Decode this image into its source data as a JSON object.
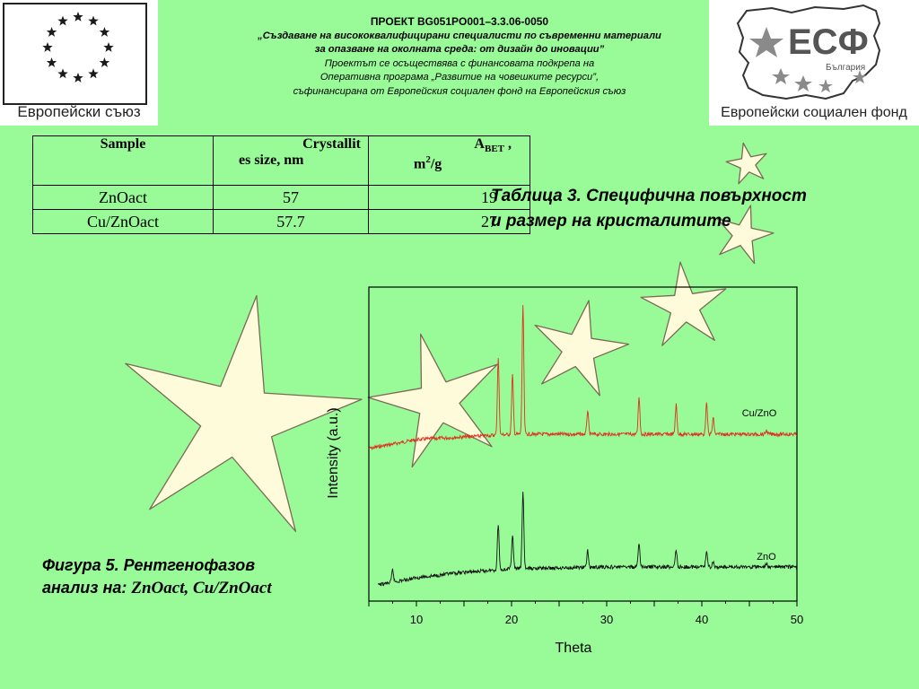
{
  "eu_logo": {
    "caption": "Европейски съюз"
  },
  "esf_logo": {
    "mark": "ЕСФ",
    "country": "България",
    "caption": "Европейски социален фонд"
  },
  "header": {
    "line1": "ПРОЕКТ BG051PO001–3.3.06-0050",
    "line2": "„Създаване на висококвалифицирани специалисти по съвременни материали",
    "line3": "за опазване на околната среда: от дизайн до иновации”",
    "line4": "Проектът се осъществява с финансовата подкрепа на",
    "line5": "Оперативна програма „Развитие на човешките ресурси”,",
    "line6": "съфинансирана от Европейския социален фонд на Европейския съюз"
  },
  "table": {
    "headers": {
      "sample": "Sample",
      "size_line1": "Crystallit",
      "size_line2": "es size, nm",
      "area_main": "A",
      "area_sub": "BET",
      "area_comma": " ,",
      "area_unit": "m",
      "area_sup": "2",
      "area_unit2": "/g"
    },
    "rows": [
      {
        "sample": "ZnOact",
        "size": "57",
        "area": "19"
      },
      {
        "sample": "Cu/ZnOact",
        "size": "57.7",
        "area": "27"
      }
    ]
  },
  "table_caption": {
    "line1": "Таблица 3. Специфична повърхност",
    "line2": "и размер на кристалитите"
  },
  "figure_caption": {
    "line1": "Фигура 5.  Рентгенофазов",
    "line2_prefix": "анализ на: ",
    "line2_samples": "ZnOact, Cu/ZnOact"
  },
  "chart_data": {
    "type": "line",
    "xlabel": "Theta",
    "ylabel": "Intensity (a.u.)",
    "xlim": [
      5,
      50
    ],
    "x_ticks": [
      10,
      20,
      30,
      40,
      50
    ],
    "series": [
      {
        "name": "Cu/ZnO",
        "color": "#e0301e",
        "baseline": [
          [
            5,
            500
          ],
          [
            10,
            490
          ],
          [
            15,
            487
          ],
          [
            20,
            484
          ],
          [
            25,
            484
          ],
          [
            30,
            484
          ],
          [
            40,
            484
          ],
          [
            50,
            484
          ]
        ],
        "peaks": [
          [
            18.6,
            400
          ],
          [
            20.1,
            418
          ],
          [
            21.2,
            342
          ],
          [
            28,
            458
          ],
          [
            33.4,
            442
          ],
          [
            37.3,
            451
          ],
          [
            40.5,
            450
          ],
          [
            41.2,
            466
          ],
          [
            46.8,
            480
          ]
        ]
      },
      {
        "name": "ZnO",
        "color": "#111111",
        "baseline": [
          [
            6,
            652
          ],
          [
            10,
            644
          ],
          [
            15,
            638
          ],
          [
            20,
            634
          ],
          [
            25,
            633
          ],
          [
            30,
            632
          ],
          [
            40,
            632
          ],
          [
            50,
            632
          ]
        ],
        "peaks": [
          [
            7.5,
            635
          ],
          [
            18.6,
            584
          ],
          [
            20.1,
            596
          ],
          [
            21.2,
            548
          ],
          [
            28,
            614
          ],
          [
            33.4,
            605
          ],
          [
            37.3,
            612
          ],
          [
            40.5,
            614
          ],
          [
            41.2,
            626
          ],
          [
            46.8,
            628
          ]
        ]
      }
    ]
  }
}
